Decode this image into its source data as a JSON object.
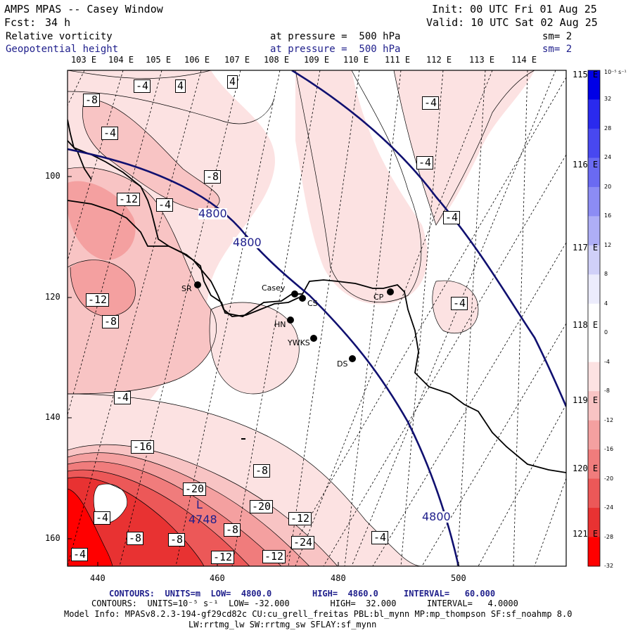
{
  "header": {
    "title": "AMPS MPAS -- Casey Window",
    "fcst_label": "Fcst:",
    "fcst_value": "34 h",
    "init": "Init: 00 UTC Fri 01 Aug 25",
    "valid": "Valid: 10 UTC Sat 02 Aug 25",
    "field1_name": "Relative vorticity",
    "field1_level": "at pressure =  500 hPa",
    "field1_sm": "sm= 2",
    "field2_name": "Geopotential height",
    "field2_level": "at pressure =  500 hPa",
    "field2_sm": "sm= 2"
  },
  "longitude_labels_top": [
    "103 E",
    "104 E",
    "105 E",
    "106 E",
    "107 E",
    "108 E",
    "109 E",
    "110 E",
    "111 E",
    "112 E",
    "113 E",
    "114 E"
  ],
  "latitude_labels_right": [
    "115 E",
    "116 E",
    "117 E",
    "118 E",
    "119 E",
    "120 E",
    "121 E"
  ],
  "x_axis_ticks": [
    "440",
    "460",
    "480",
    "500"
  ],
  "y_axis_ticks": [
    "100",
    "120",
    "140",
    "160"
  ],
  "colorbar": {
    "unit": "10⁻⁵ s⁻¹",
    "labels": [
      "32",
      "28",
      "24",
      "20",
      "16",
      "12",
      "8",
      "4",
      "0",
      "-4",
      "-8",
      "-12",
      "-16",
      "-20",
      "-24",
      "-28",
      "-32"
    ],
    "colors": [
      "#0000e6",
      "#2a2aee",
      "#4848f0",
      "#6a6af2",
      "#8c8cf4",
      "#aeaef6",
      "#d0d0f8",
      "#ececfc",
      "#ffffff",
      "#ffffff",
      "#fce2e2",
      "#f8c4c4",
      "#f4a0a0",
      "#f07c7c",
      "#ec5858",
      "#e83232",
      "#ff0000"
    ]
  },
  "stations": [
    {
      "label": "SR"
    },
    {
      "label": "Casey"
    },
    {
      "label": "CS"
    },
    {
      "label": "HN"
    },
    {
      "label": "YWKS"
    },
    {
      "label": "DS"
    },
    {
      "label": "CP"
    }
  ],
  "contour_labels_vort": [
    "-4",
    "4",
    "4",
    "-8",
    "-4",
    "-4",
    "-4",
    "-4",
    "-8",
    "-12",
    "-4",
    "-12",
    "-8",
    "-4",
    "-16",
    "-4",
    "-8",
    "-20",
    "-20",
    "-12",
    "-24",
    "-8",
    "-4",
    "-8",
    "-8",
    "-12",
    "-12",
    "-4",
    "-4"
  ],
  "contour_labels_height": [
    "4800",
    "4800",
    "4800"
  ],
  "low_label": "L",
  "low_value": "4748",
  "footer": {
    "line1": "CONTOURS:  UNITS=m  LOW=  4800.0        HIGH=  4860.0     INTERVAL=   60.000",
    "line2": "CONTOURS:  UNITS=10⁻⁵ s⁻¹  LOW= -32.000        HIGH=  32.000      INTERVAL=   4.0000",
    "line3": "Model Info: MPASv8.2.3-194-gf29cd82c CU:cu_grell_freitas PBL:bl_mynn MP:mp_thompson SF:sf_noahmp 8.0",
    "line4": "LW:rrtmg_lw SW:rrtmg_sw SFLAY:sf_mynn"
  }
}
